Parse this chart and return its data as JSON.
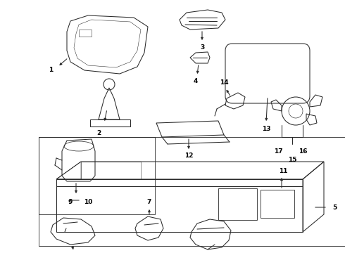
{
  "bg_color": "#ffffff",
  "line_color": "#2a2a2a",
  "label_color": "#000000",
  "figsize": [
    4.9,
    3.6
  ],
  "dpi": 100,
  "lw": 0.75,
  "label_fontsize": 6.5
}
